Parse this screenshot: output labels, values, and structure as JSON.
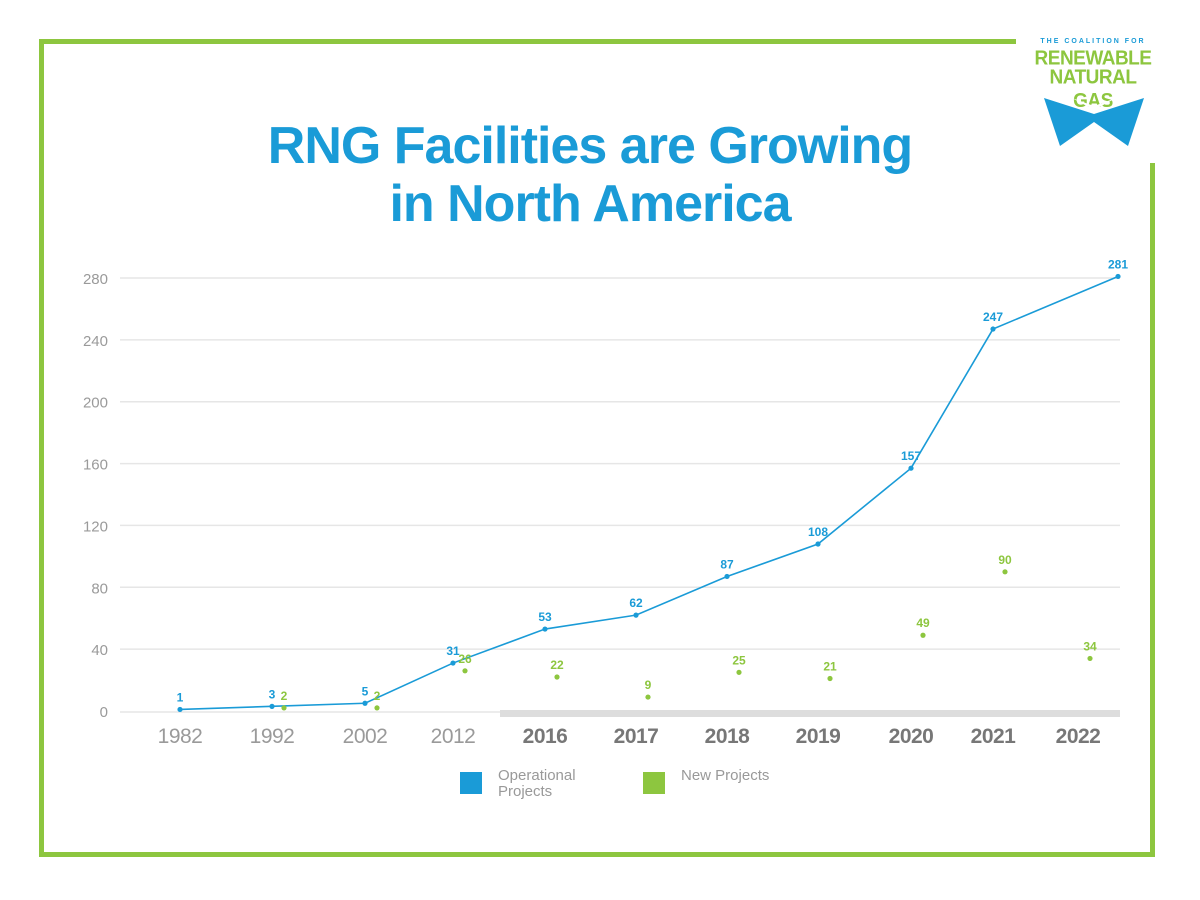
{
  "title": {
    "line1": "RNG Facilities are Growing",
    "line2": "in North America"
  },
  "logo": {
    "line1": "THE COALITION FOR",
    "line2": "RENEWABLE",
    "line3": "NATURAL GAS"
  },
  "legend": [
    {
      "label": "Operational Projects",
      "color": "#1a9bd7"
    },
    {
      "label": "New Projects",
      "color": "#8dc63f"
    }
  ],
  "colors": {
    "accent_blue": "#1a9bd7",
    "accent_green": "#8dc63f",
    "grid": "#e6e6e6",
    "tick": "#9a9a9a",
    "tick_bold": "#777777"
  },
  "chart_data": {
    "type": "line",
    "title": "RNG Facilities are Growing in North America",
    "categories": [
      "1982",
      "1992",
      "2002",
      "2012",
      "2016",
      "2017",
      "2018",
      "2019",
      "2020",
      "2021",
      "2022"
    ],
    "bold_categories": [
      "2016",
      "2017",
      "2018",
      "2019",
      "2020",
      "2021",
      "2022"
    ],
    "ylim": [
      0,
      280
    ],
    "yticks": [
      0,
      40,
      80,
      120,
      160,
      200,
      240,
      280
    ],
    "grid": true,
    "legend_position": "bottom",
    "series": [
      {
        "name": "Operational Projects",
        "style": "line",
        "color": "#1a9bd7",
        "points": [
          {
            "x": "1982",
            "y": 1
          },
          {
            "x": "1992",
            "y": 3
          },
          {
            "x": "2002",
            "y": 5
          },
          {
            "x": "2012",
            "y": 31
          },
          {
            "x": "2016",
            "y": 53
          },
          {
            "x": "2017",
            "y": 62
          },
          {
            "x": "2018",
            "y": 87
          },
          {
            "x": "2019",
            "y": 108
          },
          {
            "x": "2020",
            "y": 157
          },
          {
            "x": "2021",
            "y": 247
          },
          {
            "x": "2022",
            "y": 281
          }
        ]
      },
      {
        "name": "New Projects",
        "style": "points",
        "color": "#8dc63f",
        "points": [
          {
            "x": "1992",
            "y": 2
          },
          {
            "x": "2002",
            "y": 2
          },
          {
            "x": "2012",
            "y": 26
          },
          {
            "x": "2016",
            "y": 22
          },
          {
            "x": "2017",
            "y": 9
          },
          {
            "x": "2018",
            "y": 25
          },
          {
            "x": "2019",
            "y": 21
          },
          {
            "x": "2020",
            "y": 49
          },
          {
            "x": "2021",
            "y": 90
          },
          {
            "x": "2022",
            "y": 34
          }
        ]
      }
    ]
  }
}
